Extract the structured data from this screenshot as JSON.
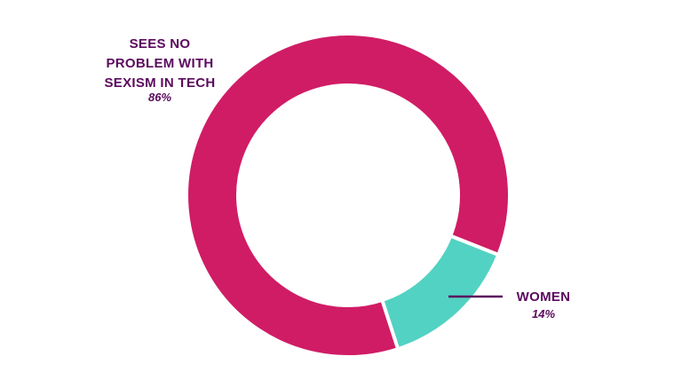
{
  "chart_data": {
    "type": "donut",
    "categories": [
      "SEES NO PROBLEM WITH SEXISM IN TECH",
      "WOMEN"
    ],
    "values": [
      86,
      14
    ],
    "value_labels": [
      "86%",
      "14%"
    ],
    "colors": [
      "#d01c65",
      "#52d2c2"
    ]
  }
}
